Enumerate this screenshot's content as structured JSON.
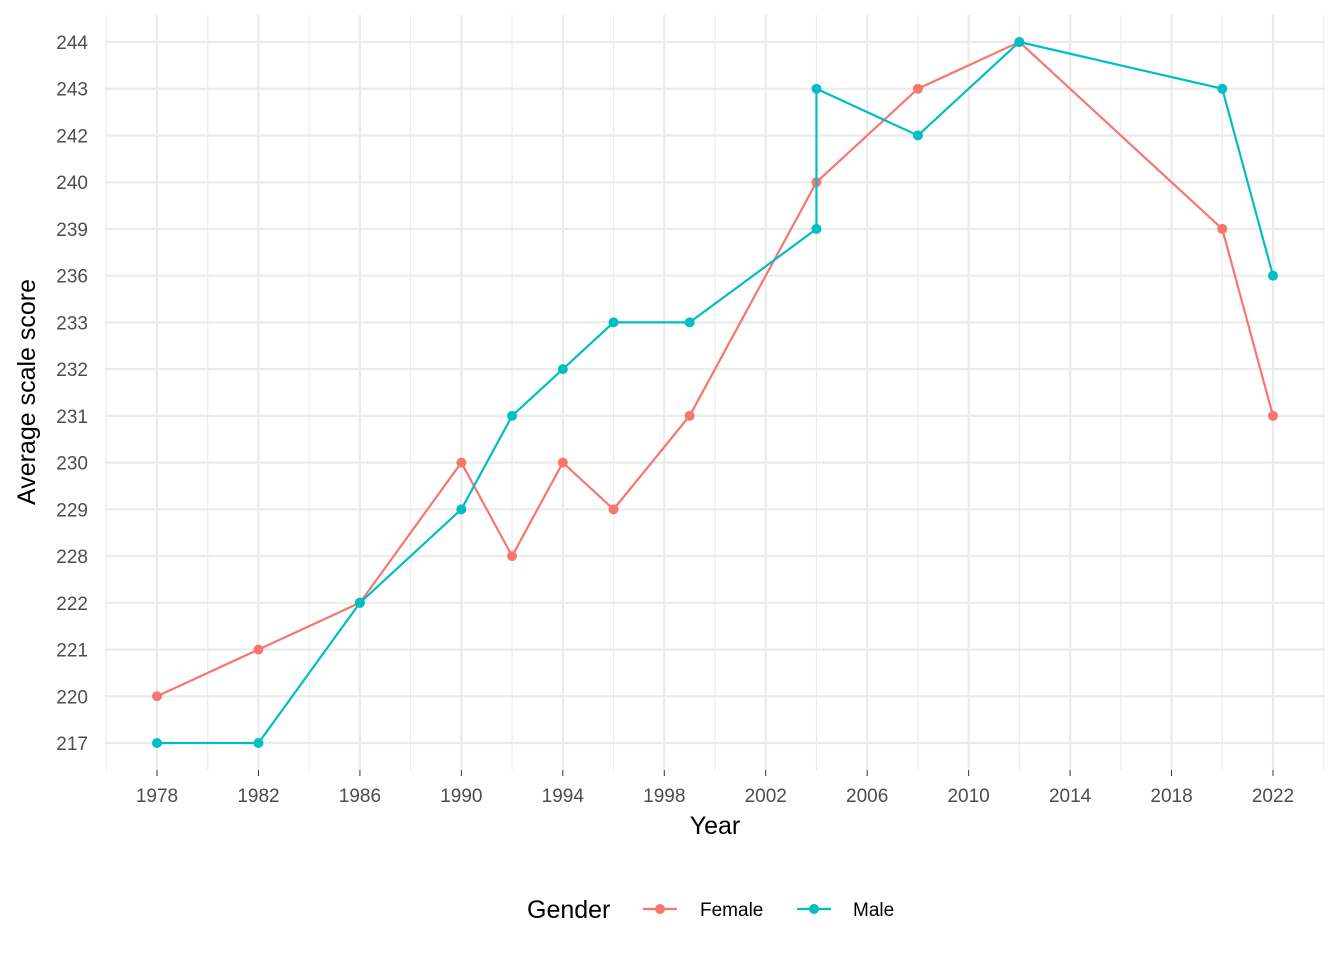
{
  "chart_data": {
    "type": "line",
    "xlabel": "Year",
    "ylabel": "Average scale score",
    "x_ticks": [
      1978,
      1982,
      1986,
      1990,
      1994,
      1998,
      2002,
      2006,
      2010,
      2014,
      2018,
      2022
    ],
    "xlim": [
      1976,
      2024
    ],
    "y_categories": [
      "217",
      "220",
      "221",
      "222",
      "228",
      "229",
      "230",
      "231",
      "232",
      "233",
      "236",
      "239",
      "240",
      "242",
      "243",
      "244"
    ],
    "y_scale": "discrete",
    "grid": true,
    "legend": {
      "title": "Gender",
      "placement": "bottom"
    },
    "series": [
      {
        "name": "Female",
        "color": "#F8766D",
        "x": [
          1978,
          1982,
          1986,
          1990,
          1992,
          1994,
          1996,
          1999,
          2004,
          2008,
          2012,
          2020,
          2022
        ],
        "y": [
          "220",
          "221",
          "222",
          "230",
          "228",
          "230",
          "229",
          "231",
          "240",
          "243",
          "244",
          "239",
          "231"
        ]
      },
      {
        "name": "Male",
        "color": "#00BFC4",
        "x": [
          1978,
          1982,
          1986,
          1990,
          1992,
          1994,
          1996,
          1999,
          2004,
          2004,
          2008,
          2012,
          2020,
          2022
        ],
        "y": [
          "217",
          "217",
          "222",
          "229",
          "231",
          "232",
          "233",
          "233",
          "239",
          "243",
          "242",
          "244",
          "243",
          "236"
        ]
      }
    ]
  }
}
